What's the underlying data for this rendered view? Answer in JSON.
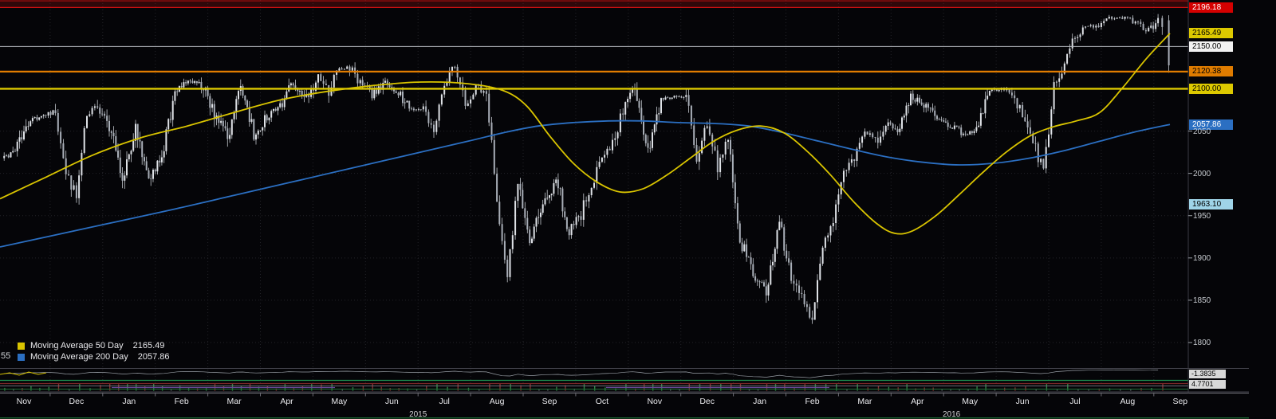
{
  "colors": {
    "background": "#050508",
    "grid": "#232329",
    "wick": "#c4c8ce",
    "candle_up": "#dfe2e7",
    "candle_down": "#a9afb8",
    "axis_text": "#c6cacf",
    "month_text": "#e9e9ec",
    "high_band_fill": "rgba(150,15,15,0.30)",
    "high_band_edge": "#cc1111",
    "panel_separator": "#44444c",
    "bottom_green": "#1d6b33"
  },
  "legend": {
    "fragment": "55"
  },
  "indicator_panel": {
    "labels": [
      {
        "text": "-1.3835",
        "bg": "#d8d8d8",
        "fg": "#000000"
      },
      {
        "text": "4.7701",
        "bg": "#d8d8d8",
        "fg": "#000000"
      }
    ]
  },
  "chart_data": {
    "type": "candlestick",
    "ylim": [
      1770,
      2205
    ],
    "x_axis": {
      "months": [
        "Nov",
        "Dec",
        "Jan",
        "Feb",
        "Mar",
        "Apr",
        "May",
        "Jun",
        "Jul",
        "Aug",
        "Sep",
        "Oct",
        "Nov",
        "Dec",
        "Jan",
        "Feb",
        "Mar",
        "Apr",
        "May",
        "Jun",
        "Jul",
        "Aug",
        "Sep"
      ],
      "years": [
        {
          "label": "2015",
          "from": 2,
          "to": 14
        },
        {
          "label": "2016",
          "from": 14,
          "to": 22.3
        }
      ]
    },
    "y_axis": {
      "ticks": [
        2050,
        2000,
        1950,
        1900,
        1850,
        1800
      ],
      "price_labels": [
        {
          "text": "2196.18",
          "price": 2196.18,
          "bg": "#d40000",
          "fg": "#ffffff"
        },
        {
          "text": "2165.49",
          "price": 2165.49,
          "bg": "#ddc900",
          "fg": "#000000"
        },
        {
          "text": "2150.00",
          "price": 2150.0,
          "bg": "#f2f2f2",
          "fg": "#000000"
        },
        {
          "text": "2120.38",
          "price": 2120.38,
          "bg": "#e07c00",
          "fg": "#000000"
        },
        {
          "text": "2100.00",
          "price": 2100.0,
          "bg": "#ddc900",
          "fg": "#000000"
        },
        {
          "text": "2057.86",
          "price": 2057.86,
          "bg": "#2b6fc2",
          "fg": "#ffffff"
        },
        {
          "text": "1963.10",
          "price": 1963.1,
          "bg": "#9fd4e8",
          "fg": "#000000"
        }
      ]
    },
    "h_lines": [
      {
        "price": 2196.18,
        "color": "#cc1111",
        "width": 1.3
      },
      {
        "price": 2150.0,
        "color": "#b9bcc2",
        "width": 1
      },
      {
        "price": 2120.38,
        "color": "#e07c00",
        "width": 2.2
      },
      {
        "price": 2100.0,
        "color": "#ddc900",
        "width": 2.4
      }
    ],
    "series": {
      "weekly_closes_by_month": [
        [
          2018,
          2032,
          2064,
          2068
        ],
        [
          2075,
          2002,
          1972,
          2071,
          2081
        ],
        [
          2058,
          1992,
          2052,
          1995
        ],
        [
          2020,
          2097,
          2110,
          2105
        ],
        [
          2071,
          2040,
          2108,
          2046
        ],
        [
          2067,
          2081,
          2106,
          2086
        ],
        [
          2116,
          2096,
          2123,
          2126,
          2107
        ],
        [
          2093,
          2108,
          2095,
          2076
        ],
        [
          2077,
          2052,
          2108,
          2126,
          2080
        ],
        [
          2104,
          2092,
          1971,
          1880,
          1989
        ],
        [
          1921,
          1961,
          1995,
          1931
        ],
        [
          1951,
          1988,
          2014,
          2033,
          2075
        ],
        [
          2099,
          2023,
          2089,
          2090
        ],
        [
          2092,
          2012,
          2061,
          2006,
          2044
        ],
        [
          1922,
          1880,
          1859,
          1940
        ],
        [
          1880,
          1853,
          1829,
          1918,
          1948
        ],
        [
          2000,
          2022,
          2050,
          2036,
          2060
        ],
        [
          2048,
          2092,
          2081,
          2065
        ],
        [
          2057,
          2047,
          2052,
          2099
        ],
        [
          2099,
          2096,
          2071,
          2037,
          2001
        ],
        [
          2103,
          2130,
          2162,
          2175,
          2174
        ],
        [
          2183,
          2184,
          2184,
          2176,
          2169
        ],
        [
          2180,
          2128
        ]
      ],
      "last_month_fraction": 0.32
    },
    "last_candle": {
      "open": 2181,
      "high": 2187,
      "low": 2119.1,
      "close": 2127.81
    },
    "moving_averages": [
      {
        "name": "Moving Average 50 Day",
        "value_text": "2165.49",
        "value": 2165.49,
        "color": "#d9c400",
        "points": [
          [
            0,
            1970
          ],
          [
            0.04,
            1996
          ],
          [
            0.08,
            2022
          ],
          [
            0.12,
            2042
          ],
          [
            0.16,
            2056
          ],
          [
            0.2,
            2072
          ],
          [
            0.24,
            2087
          ],
          [
            0.28,
            2097
          ],
          [
            0.32,
            2104
          ],
          [
            0.36,
            2108
          ],
          [
            0.4,
            2106
          ],
          [
            0.43,
            2098
          ],
          [
            0.45,
            2080
          ],
          [
            0.47,
            2044
          ],
          [
            0.49,
            2012
          ],
          [
            0.51,
            1990
          ],
          [
            0.53,
            1978
          ],
          [
            0.55,
            1982
          ],
          [
            0.57,
            1998
          ],
          [
            0.59,
            2018
          ],
          [
            0.61,
            2038
          ],
          [
            0.63,
            2051
          ],
          [
            0.65,
            2056
          ],
          [
            0.67,
            2048
          ],
          [
            0.69,
            2026
          ],
          [
            0.71,
            1998
          ],
          [
            0.73,
            1966
          ],
          [
            0.75,
            1940
          ],
          [
            0.765,
            1929
          ],
          [
            0.78,
            1932
          ],
          [
            0.8,
            1950
          ],
          [
            0.82,
            1975
          ],
          [
            0.84,
            2001
          ],
          [
            0.86,
            2025
          ],
          [
            0.88,
            2044
          ],
          [
            0.9,
            2055
          ],
          [
            0.92,
            2062
          ],
          [
            0.94,
            2072
          ],
          [
            0.96,
            2102
          ],
          [
            0.98,
            2136
          ],
          [
            1,
            2165.49
          ]
        ]
      },
      {
        "name": "Moving Average 200 Day",
        "value_text": "2057.86",
        "value": 2057.86,
        "color": "#2b6fc2",
        "points": [
          [
            0,
            1913
          ],
          [
            0.05,
            1928
          ],
          [
            0.1,
            1943
          ],
          [
            0.15,
            1958
          ],
          [
            0.2,
            1974
          ],
          [
            0.25,
            1990
          ],
          [
            0.3,
            2006
          ],
          [
            0.35,
            2022
          ],
          [
            0.4,
            2038
          ],
          [
            0.43,
            2048
          ],
          [
            0.46,
            2056
          ],
          [
            0.49,
            2060
          ],
          [
            0.52,
            2062
          ],
          [
            0.55,
            2062
          ],
          [
            0.58,
            2060
          ],
          [
            0.61,
            2059
          ],
          [
            0.64,
            2056
          ],
          [
            0.67,
            2048
          ],
          [
            0.7,
            2038
          ],
          [
            0.73,
            2028
          ],
          [
            0.76,
            2019
          ],
          [
            0.79,
            2013
          ],
          [
            0.82,
            2010
          ],
          [
            0.85,
            2012
          ],
          [
            0.88,
            2018
          ],
          [
            0.91,
            2027
          ],
          [
            0.94,
            2038
          ],
          [
            0.97,
            2049
          ],
          [
            1,
            2057.86
          ]
        ]
      }
    ]
  }
}
